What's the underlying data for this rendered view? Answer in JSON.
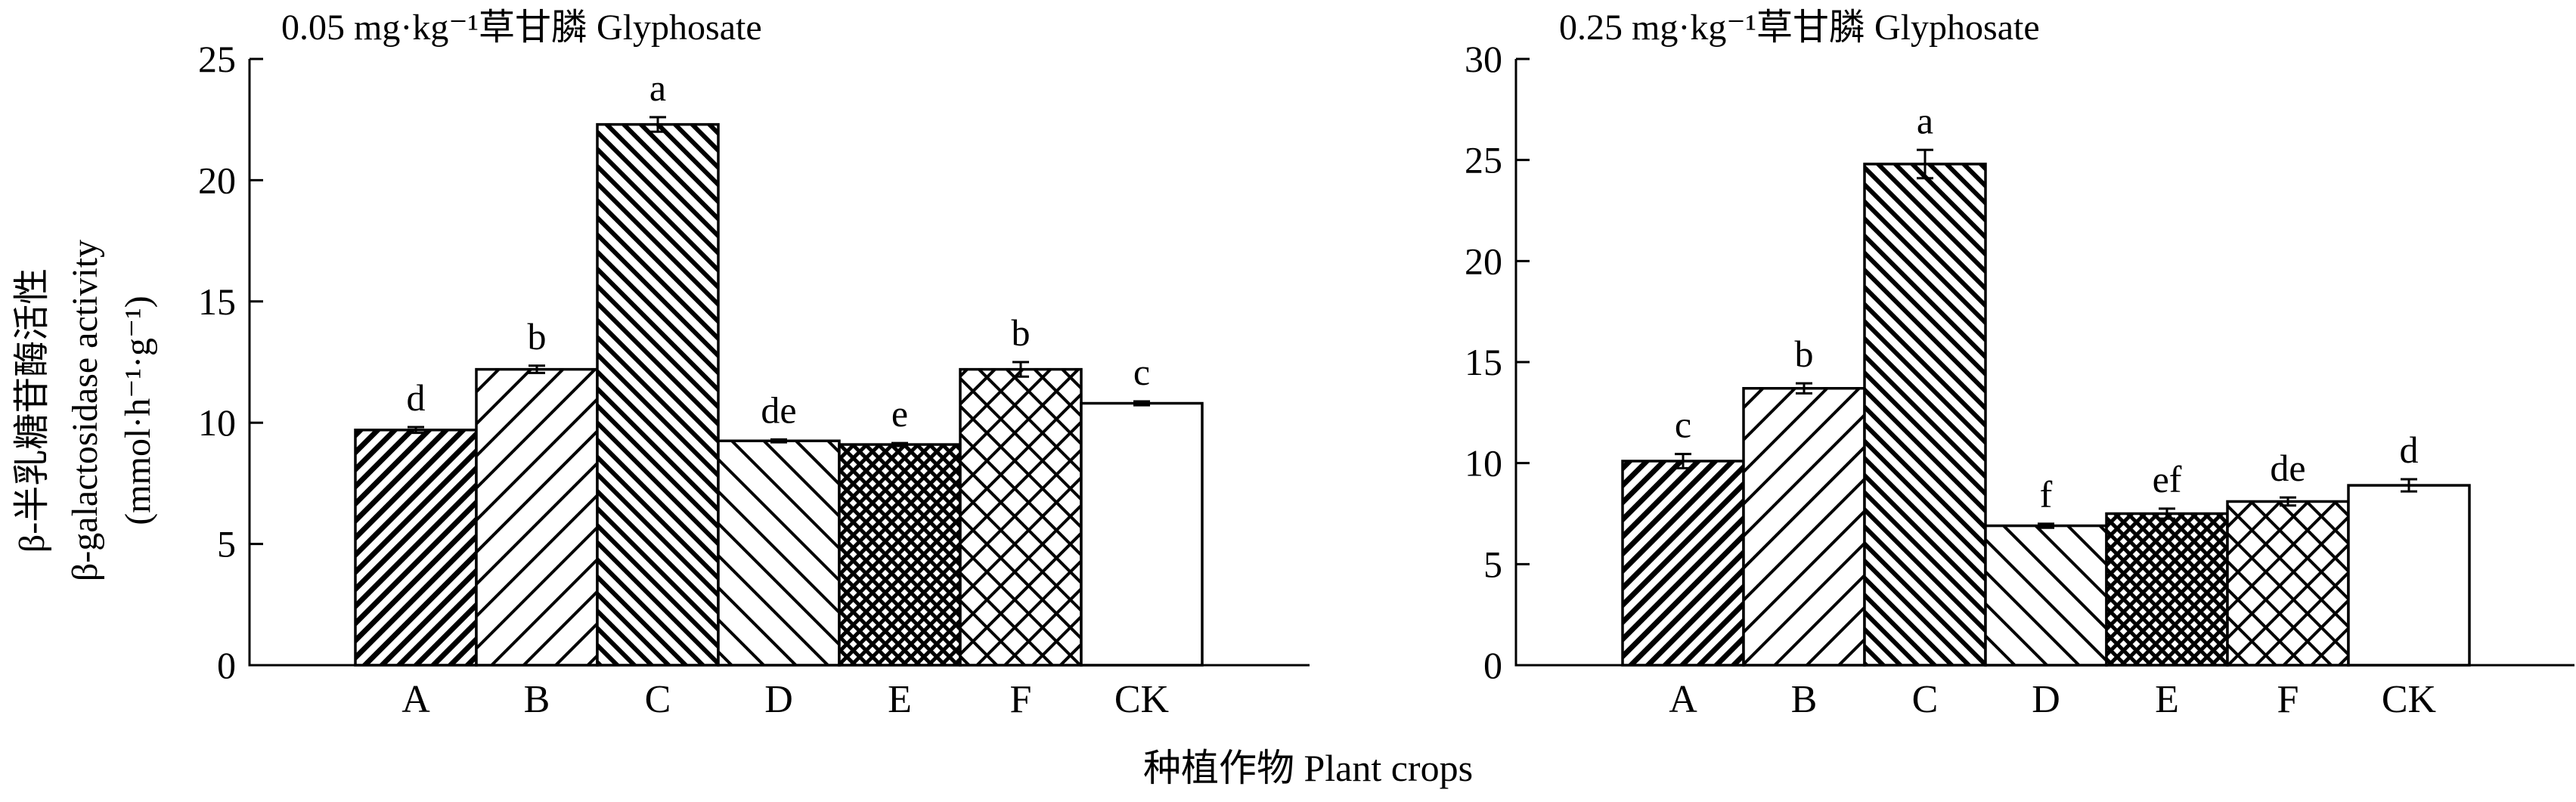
{
  "ylabel_lines": [
    "β-半乳糖苷酶活性",
    "β-galactosidase activity",
    "(mmol·h⁻¹·g⁻¹)"
  ],
  "xlabel": "种植作物 Plant crops",
  "chart_data": [
    {
      "type": "bar",
      "title": "0.05 mg·kg⁻¹草甘膦 Glyphosate",
      "categories": [
        "A",
        "B",
        "C",
        "D",
        "E",
        "F",
        "CK"
      ],
      "values": [
        9.7,
        12.2,
        22.3,
        9.25,
        9.1,
        12.2,
        10.8
      ],
      "errors": [
        0.12,
        0.15,
        0.3,
        0.06,
        0.06,
        0.3,
        0.08
      ],
      "significance_letters": [
        "d",
        "b",
        "a",
        "de",
        "e",
        "b",
        "c"
      ],
      "patterns": [
        "dense-diagonal-up",
        "diagonal-up",
        "dense-diagonal-down",
        "diagonal-down",
        "dense-crosshatch",
        "crosshatch",
        "none"
      ],
      "ylim": [
        0,
        25
      ],
      "yticks": [
        0,
        5,
        10,
        15,
        20,
        25
      ],
      "grid": false
    },
    {
      "type": "bar",
      "title": "0.25 mg·kg⁻¹草甘膦 Glyphosate",
      "categories": [
        "A",
        "B",
        "C",
        "D",
        "E",
        "F",
        "CK"
      ],
      "values": [
        10.1,
        13.7,
        24.8,
        6.9,
        7.5,
        8.1,
        8.9
      ],
      "errors": [
        0.35,
        0.25,
        0.7,
        0.1,
        0.25,
        0.2,
        0.3
      ],
      "significance_letters": [
        "c",
        "b",
        "a",
        "f",
        "ef",
        "de",
        "d"
      ],
      "patterns": [
        "dense-diagonal-up",
        "diagonal-up",
        "dense-diagonal-down",
        "diagonal-down",
        "dense-crosshatch",
        "crosshatch",
        "none"
      ],
      "ylim": [
        0,
        30
      ],
      "yticks": [
        0,
        5,
        10,
        15,
        20,
        25,
        30
      ],
      "grid": false
    }
  ]
}
